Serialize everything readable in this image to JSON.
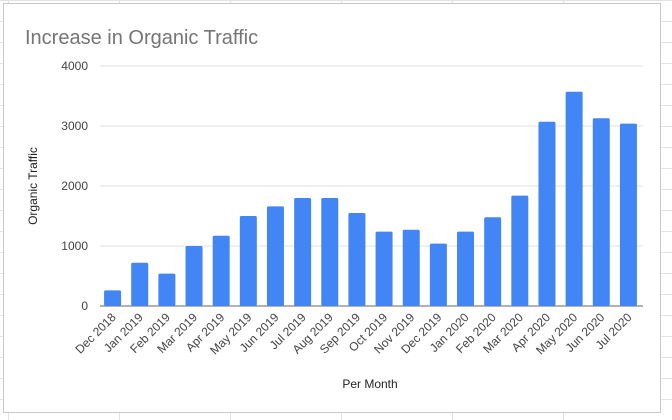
{
  "chart_data": {
    "type": "bar",
    "title": "Increase in Organic Traffic",
    "xlabel": "Per Month",
    "ylabel": "Organic Traffic",
    "ylim": [
      0,
      4000
    ],
    "yticks": [
      0,
      1000,
      2000,
      3000,
      4000
    ],
    "grid": true,
    "bar_color": "#4285f4",
    "categories": [
      "Dec 2018",
      "Jan 2019",
      "Feb 2019",
      "Mar 2019",
      "Apr 2019",
      "May 2019",
      "Jun 2019",
      "Jul 2019",
      "Aug 2019",
      "Sep 2019",
      "Oct 2019",
      "Nov 2019",
      "Dec 2019",
      "Jan 2020",
      "Feb 2020",
      "Mar 2020",
      "Apr 2020",
      "May 2020",
      "Jun 2020",
      "Jul 2020"
    ],
    "values": [
      260,
      720,
      540,
      1000,
      1170,
      1500,
      1660,
      1800,
      1800,
      1550,
      1240,
      1270,
      1040,
      1240,
      1480,
      1840,
      3070,
      3570,
      3130,
      3040
    ]
  }
}
